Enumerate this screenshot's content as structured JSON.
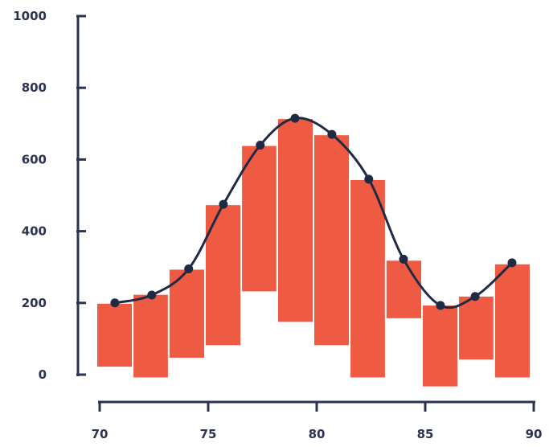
{
  "chart_data": {
    "type": "bar",
    "description_note": "",
    "x_ticks": [
      "70",
      "75",
      "80",
      "85",
      "90"
    ],
    "y_ticks": [
      "0",
      "200",
      "400",
      "600",
      "800",
      "1000"
    ],
    "xlim": [
      70,
      90
    ],
    "ylim": [
      0,
      1000
    ],
    "bars": [
      {
        "x_start": 70,
        "x_end": 71.67,
        "y_low": 20,
        "y_high": 200
      },
      {
        "x_start": 71.67,
        "x_end": 73.33,
        "y_low": -10,
        "y_high": 225
      },
      {
        "x_start": 73.33,
        "x_end": 75.0,
        "y_low": 45,
        "y_high": 295
      },
      {
        "x_start": 75.0,
        "x_end": 76.67,
        "y_low": 80,
        "y_high": 475
      },
      {
        "x_start": 76.67,
        "x_end": 78.33,
        "y_low": 230,
        "y_high": 640
      },
      {
        "x_start": 78.33,
        "x_end": 80.0,
        "y_low": 145,
        "y_high": 715
      },
      {
        "x_start": 80.0,
        "x_end": 81.67,
        "y_low": 80,
        "y_high": 670
      },
      {
        "x_start": 81.67,
        "x_end": 83.33,
        "y_low": -10,
        "y_high": 545
      },
      {
        "x_start": 83.33,
        "x_end": 85.0,
        "y_low": 155,
        "y_high": 320
      },
      {
        "x_start": 85.0,
        "x_end": 86.67,
        "y_low": -35,
        "y_high": 195
      },
      {
        "x_start": 86.67,
        "x_end": 88.33,
        "y_low": 40,
        "y_high": 220
      },
      {
        "x_start": 88.33,
        "x_end": 90.0,
        "y_low": -10,
        "y_high": 310
      }
    ],
    "line_points": [
      {
        "x": 70.7,
        "y": 200
      },
      {
        "x": 72.4,
        "y": 222
      },
      {
        "x": 74.1,
        "y": 295
      },
      {
        "x": 75.7,
        "y": 475
      },
      {
        "x": 77.4,
        "y": 640
      },
      {
        "x": 79.0,
        "y": 715
      },
      {
        "x": 80.7,
        "y": 670
      },
      {
        "x": 82.4,
        "y": 545
      },
      {
        "x": 84.0,
        "y": 322
      },
      {
        "x": 85.7,
        "y": 193
      },
      {
        "x": 87.3,
        "y": 218
      },
      {
        "x": 89.0,
        "y": 312
      }
    ],
    "colors": {
      "bars": "#ef5a43",
      "line": "#1f2a44",
      "axis": "#2b3350"
    },
    "grid": false,
    "legend": "none"
  }
}
